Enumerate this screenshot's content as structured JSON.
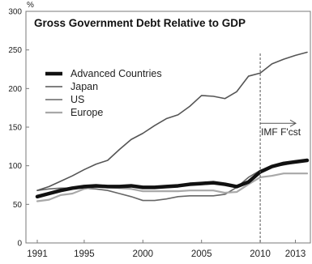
{
  "chart_data": {
    "type": "line",
    "title": "Gross Government Debt Relative to GDP",
    "ylabel": "%",
    "xlabel": "",
    "x": [
      1991,
      1992,
      1993,
      1994,
      1995,
      1996,
      1997,
      1998,
      1999,
      2000,
      2001,
      2002,
      2003,
      2004,
      2005,
      2006,
      2007,
      2008,
      2009,
      2010,
      2011,
      2012,
      2013,
      2014
    ],
    "xlim": [
      1991,
      2014
    ],
    "ylim": [
      0,
      300
    ],
    "x_ticks": [
      1991,
      1995,
      2000,
      2005,
      2010,
      2013
    ],
    "y_ticks": [
      0,
      50,
      100,
      150,
      200,
      250,
      300
    ],
    "grid": false,
    "legend_position": "upper-left",
    "series": [
      {
        "name": "Advanced Countries",
        "color": "#111111",
        "width": 4.5,
        "values": [
          60,
          64,
          68,
          71,
          73,
          74,
          73,
          73,
          74,
          72,
          72,
          73,
          74,
          76,
          77,
          78,
          76,
          73,
          79,
          92,
          99,
          103,
          105,
          107
        ]
      },
      {
        "name": "Japan",
        "color": "#555555",
        "width": 1.6,
        "values": [
          68,
          73,
          80,
          87,
          95,
          102,
          107,
          121,
          134,
          142,
          152,
          161,
          166,
          177,
          191,
          190,
          187,
          196,
          216,
          220,
          232,
          238,
          243,
          247
        ]
      },
      {
        "name": "US",
        "color": "#666666",
        "width": 1.6,
        "values": [
          68,
          70,
          71,
          71,
          71,
          70,
          68,
          64,
          60,
          55,
          55,
          57,
          60,
          61,
          61,
          61,
          63,
          72,
          85,
          94,
          99,
          101,
          104,
          106
        ]
      },
      {
        "name": "Europe",
        "color": "#a8a8a8",
        "width": 2.2,
        "values": [
          54,
          56,
          62,
          64,
          70,
          73,
          72,
          71,
          70,
          67,
          67,
          67,
          67,
          68,
          68,
          68,
          65,
          66,
          76,
          85,
          87,
          90,
          90,
          90
        ]
      }
    ],
    "annotations": [
      {
        "text": "IMF F'cst",
        "x_start": 2010,
        "x_end": 2014,
        "y": 155,
        "divider_x": 2010
      }
    ]
  }
}
